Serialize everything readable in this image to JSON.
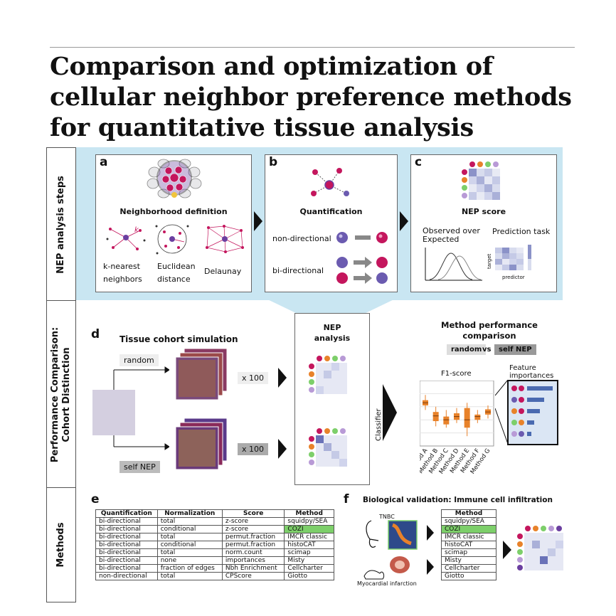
{
  "title": "Comparison and optimization of cellular neighbor preference methods for quantitative tissue analysis",
  "sections": {
    "nep_steps": "NEP analysis steps",
    "performance": [
      "Performance Comparison:",
      "Cohort Distinction"
    ],
    "methods": "Methods"
  },
  "panel_a": {
    "letter": "a",
    "heading": "Neighborhood definition",
    "items": [
      [
        "k-nearest",
        "neighbors"
      ],
      [
        "Euclidean",
        "distance"
      ],
      [
        "Delaunay"
      ]
    ],
    "k": "k"
  },
  "panel_b": {
    "letter": "b",
    "heading": "Quantification",
    "nondir": "non-directional",
    "bidir": "bi-directional"
  },
  "panel_c": {
    "letter": "c",
    "heading": "NEP score",
    "obs": [
      "Observed over",
      "Expected"
    ],
    "pred": "Prediction task",
    "target": "target",
    "predictor": "predictor"
  },
  "panel_d": {
    "letter": "d",
    "heading": "Tissue cohort simulation",
    "random": "random",
    "selfnep": "self NEP",
    "x100": "x 100",
    "nep": [
      "NEP",
      "analysis"
    ],
    "classifier": "Classifier",
    "mpc": [
      "Method performance",
      "comparison"
    ],
    "vs_left": "random",
    "vs": "vs",
    "vs_right": "self NEP",
    "f1": "F1-score",
    "fi": [
      "Feature",
      "importances"
    ],
    "methods": [
      "Method A",
      "Method B",
      "Method C",
      "Method D",
      "Method E",
      "Method F",
      "Method G"
    ]
  },
  "panel_e": {
    "letter": "e",
    "headers": [
      "Quantification",
      "Normalization",
      "Score",
      "Method"
    ],
    "rows": [
      [
        "bi-directional",
        "total",
        "z-score",
        "squidpy/SEA"
      ],
      [
        "bi-directional",
        "conditional",
        "z-score",
        "COZI"
      ],
      [
        "bi-directional",
        "total",
        "permut.fraction",
        "IMCR classic"
      ],
      [
        "bi-directional",
        "conditional",
        "permut.fraction",
        "histoCAT"
      ],
      [
        "bi-directional",
        "total",
        "norm.count",
        "scimap"
      ],
      [
        "bi-directional",
        "none",
        "importances",
        "Misty"
      ],
      [
        "bi-directional",
        "fraction of edges",
        "Nbh Enrichment",
        "Cellcharter"
      ],
      [
        "non-directional",
        "total",
        "CPScore",
        "Giotto"
      ]
    ],
    "highlight_row": 1
  },
  "panel_f": {
    "letter": "f",
    "heading": "Biological validation: Immune cell infiltration",
    "tnbc": "TNBC",
    "mi": "Myocardial infarction",
    "header": "Method",
    "methods": [
      "squidpy/SEA",
      "COZI",
      "IMCR classic",
      "histoCAT",
      "scimap",
      "Misty",
      "Cellcharter",
      "Giotto"
    ],
    "highlight_row": 1
  },
  "chart_data": {
    "type": "box",
    "title": "F1-score",
    "categories": [
      "Method A",
      "Method B",
      "Method C",
      "Method D",
      "Method E",
      "Method F",
      "Method G"
    ],
    "boxes": [
      [
        0.55,
        0.62,
        0.66,
        0.7,
        0.78
      ],
      [
        0.3,
        0.38,
        0.46,
        0.52,
        0.6
      ],
      [
        0.28,
        0.33,
        0.4,
        0.45,
        0.55
      ],
      [
        0.35,
        0.4,
        0.45,
        0.5,
        0.58
      ],
      [
        0.15,
        0.28,
        0.4,
        0.58,
        0.66
      ],
      [
        0.35,
        0.4,
        0.45,
        0.48,
        0.55
      ],
      [
        0.42,
        0.48,
        0.52,
        0.56,
        0.62
      ]
    ]
  },
  "colors": {
    "accent": "#c9e6f2",
    "orange": "#e8822a",
    "green": "#7dcf6a",
    "magenta": "#c4165d",
    "purple": "#6b3fa0",
    "navy": "#2e3a78"
  }
}
